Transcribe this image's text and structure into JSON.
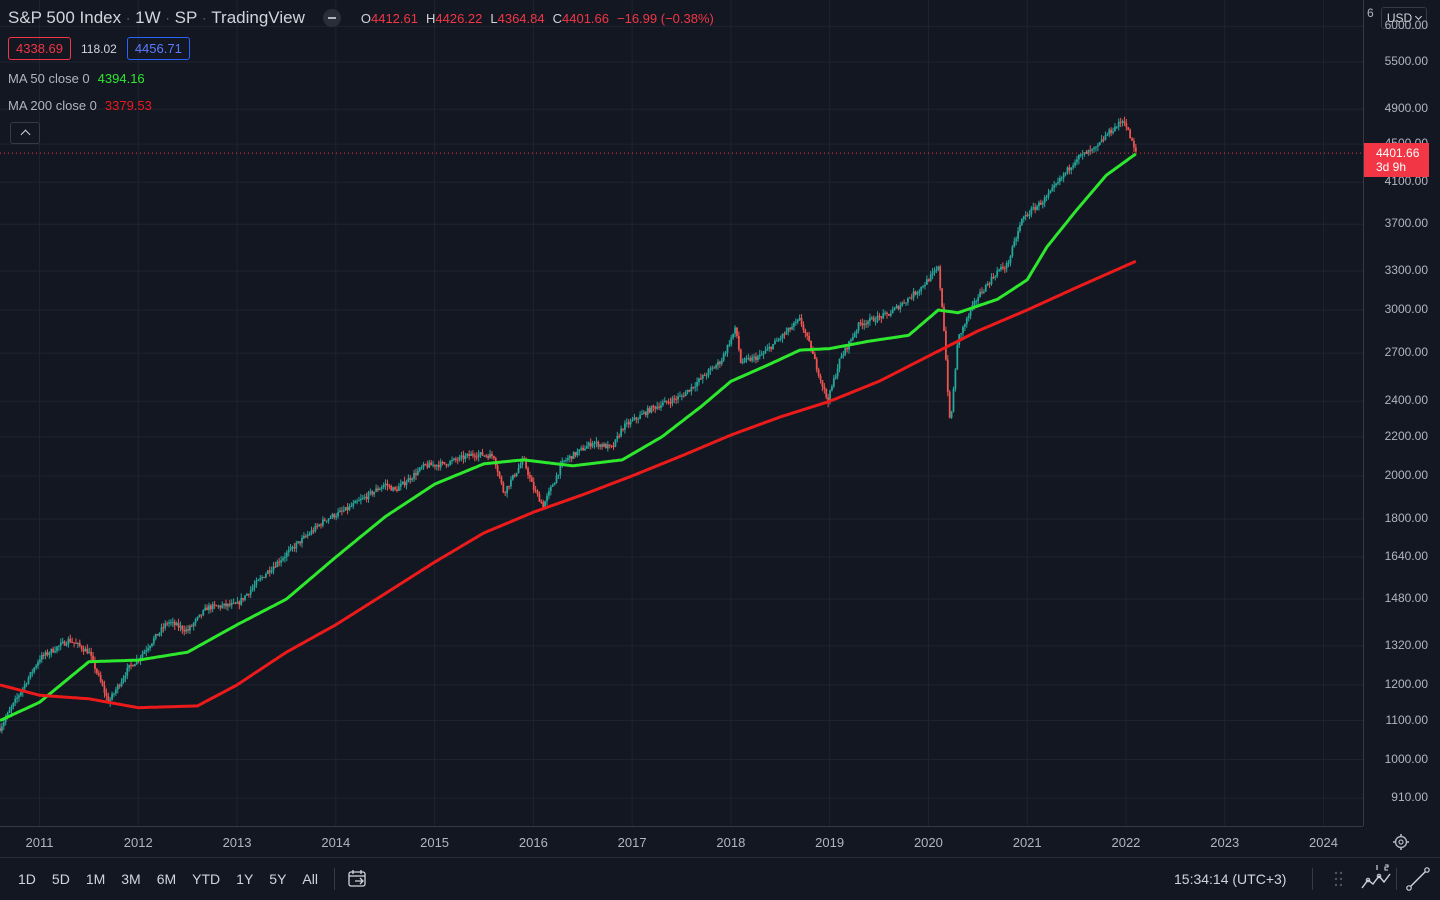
{
  "header": {
    "symbol": "S&P 500 Index",
    "interval": "1W",
    "exchange": "SP",
    "source": "TradingView",
    "ohlc": {
      "o_label": "O",
      "o_value": "4412.61",
      "h_label": "H",
      "h_value": "4426.22",
      "l_label": "L",
      "l_value": "4364.84",
      "c_label": "C",
      "c_value": "4401.66",
      "change": "−16.99 (−0.38%)"
    },
    "sell_price": "4338.69",
    "spread": "118.02",
    "buy_price": "4456.71",
    "ma50_label": "MA 50 close 0",
    "ma50_value": "4394.16",
    "ma200_label": "MA 200 close 0",
    "ma200_value": "3379.53",
    "collapse_icon": "chevron-up-icon"
  },
  "price_scale": {
    "currency": "USD",
    "top_partial": "6",
    "labels": [
      "6000.00",
      "5500.00",
      "4900.00",
      "4500.00",
      "4100.00",
      "3700.00",
      "3300.00",
      "3000.00",
      "2700.00",
      "2400.00",
      "2200.00",
      "2000.00",
      "1800.00",
      "1640.00",
      "1480.00",
      "1320.00",
      "1200.00",
      "1100.00",
      "1000.00",
      "910.00"
    ],
    "current_price": "4401.66",
    "countdown": "3d 9h"
  },
  "time_axis": {
    "labels": [
      "2011",
      "2012",
      "2013",
      "2014",
      "2015",
      "2016",
      "2017",
      "2018",
      "2019",
      "2020",
      "2021",
      "2022",
      "2023",
      "2024"
    ],
    "settings_icon": "gear-icon"
  },
  "bottom_bar": {
    "ranges": [
      "1D",
      "5D",
      "1M",
      "3M",
      "6M",
      "YTD",
      "1Y",
      "5Y",
      "All"
    ],
    "goto_icon": "calendar-goto-icon",
    "clock": "15:34:14 (UTC+3)",
    "compare_icon": "compare-chart-icon",
    "draw_icon": "trend-line-icon"
  },
  "colors": {
    "background": "#131722",
    "up": "#26a69a",
    "down": "#ef5350",
    "ma50": "#2ee82e",
    "ma200": "#ec1a1a",
    "price_tag": "#f23645",
    "buy_border": "#2962ff",
    "sell_border": "#f23645"
  },
  "chart_data": {
    "type": "line",
    "title": "S&P 500 Index",
    "interval": "1W",
    "y_scale": "log",
    "ylim": [
      850,
      6400
    ],
    "xlim": [
      2010.6,
      2024.4
    ],
    "grid": true,
    "series": [
      {
        "name": "S&P 500 Index",
        "x": [
          2010.6,
          2011.0,
          2011.3,
          2011.5,
          2011.7,
          2011.9,
          2012.0,
          2012.3,
          2012.5,
          2012.7,
          2013.0,
          2013.3,
          2013.6,
          2013.9,
          2014.1,
          2014.5,
          2014.6,
          2014.9,
          2015.1,
          2015.4,
          2015.6,
          2015.7,
          2015.9,
          2016.0,
          2016.1,
          2016.3,
          2016.6,
          2016.8,
          2016.9,
          2017.2,
          2017.5,
          2017.9,
          2018.05,
          2018.1,
          2018.3,
          2018.7,
          2018.8,
          2018.98,
          2019.1,
          2019.3,
          2019.6,
          2019.9,
          2020.1,
          2020.15,
          2020.22,
          2020.3,
          2020.5,
          2020.7,
          2020.8,
          2020.95,
          2021.2,
          2021.5,
          2021.7,
          2021.8,
          2021.98,
          2022.05,
          2022.1
        ],
        "y": [
          1080,
          1280,
          1340,
          1300,
          1150,
          1250,
          1280,
          1400,
          1370,
          1450,
          1460,
          1580,
          1690,
          1800,
          1840,
          1960,
          1930,
          2050,
          2060,
          2110,
          2100,
          1920,
          2080,
          1940,
          1860,
          2070,
          2170,
          2140,
          2250,
          2360,
          2430,
          2650,
          2870,
          2640,
          2680,
          2930,
          2750,
          2400,
          2650,
          2900,
          2970,
          3150,
          3320,
          2950,
          2250,
          2800,
          3100,
          3300,
          3350,
          3750,
          3950,
          4350,
          4450,
          4600,
          4780,
          4550,
          4401.66
        ]
      },
      {
        "name": "MA 50 close 0",
        "x": [
          2010.6,
          2011.0,
          2011.5,
          2012.0,
          2012.5,
          2013.0,
          2013.5,
          2014.0,
          2014.5,
          2015.0,
          2015.5,
          2015.9,
          2016.4,
          2016.9,
          2017.3,
          2017.7,
          2018.0,
          2018.4,
          2018.7,
          2019.0,
          2019.4,
          2019.8,
          2020.1,
          2020.3,
          2020.7,
          2021.0,
          2021.2,
          2021.5,
          2021.8,
          2022.1
        ],
        "y": [
          1100,
          1150,
          1270,
          1275,
          1300,
          1390,
          1480,
          1640,
          1810,
          1960,
          2060,
          2080,
          2050,
          2080,
          2200,
          2370,
          2520,
          2630,
          2720,
          2730,
          2780,
          2820,
          3000,
          2980,
          3080,
          3230,
          3500,
          3830,
          4170,
          4394.16
        ]
      },
      {
        "name": "MA 200 close 0",
        "x": [
          2010.6,
          2011.0,
          2011.5,
          2012.0,
          2012.6,
          2013.0,
          2013.5,
          2014.0,
          2014.5,
          2015.0,
          2015.5,
          2016.0,
          2016.5,
          2017.0,
          2017.5,
          2018.0,
          2018.5,
          2019.0,
          2019.5,
          2020.0,
          2020.5,
          2021.0,
          2021.5,
          2022.1
        ],
        "y": [
          1200,
          1170,
          1160,
          1135,
          1140,
          1200,
          1300,
          1390,
          1500,
          1620,
          1740,
          1830,
          1910,
          2000,
          2100,
          2210,
          2310,
          2400,
          2520,
          2680,
          2850,
          3000,
          3170,
          3379.53
        ]
      }
    ]
  }
}
